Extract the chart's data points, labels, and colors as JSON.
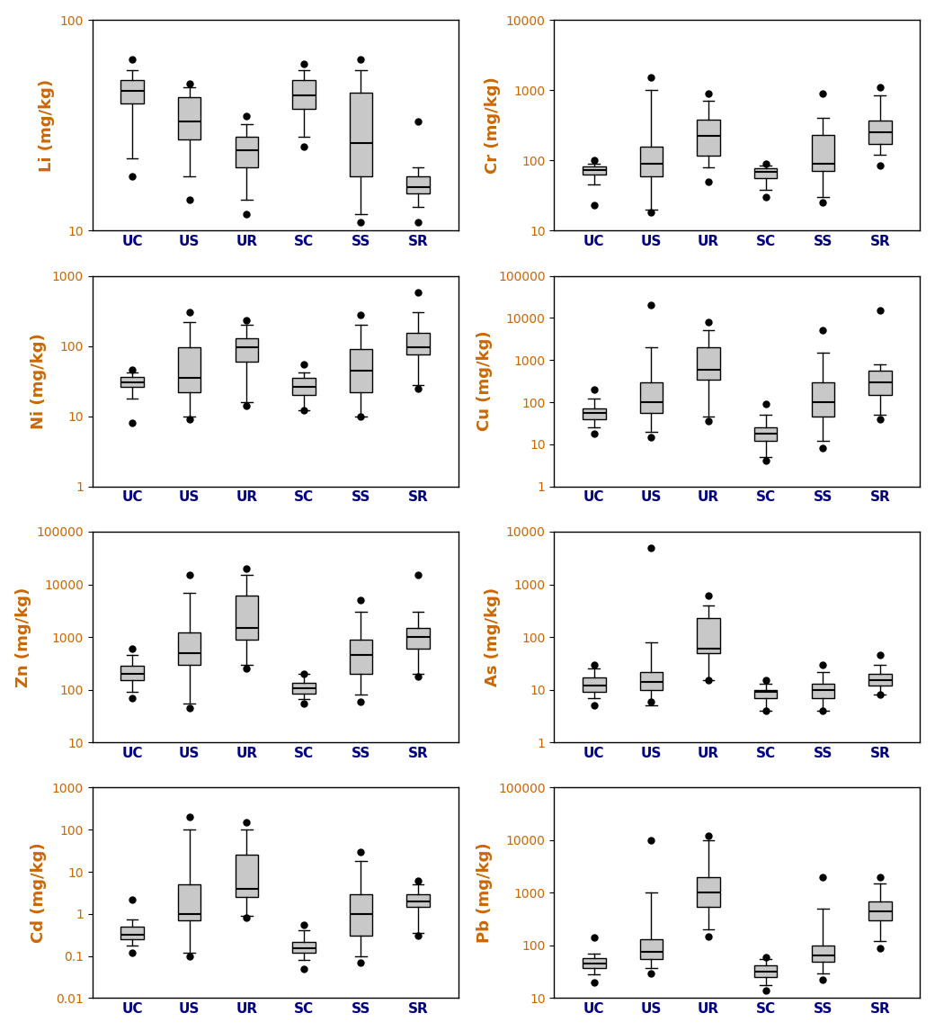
{
  "elements": [
    "UC",
    "US",
    "UR",
    "SC",
    "SS",
    "SR"
  ],
  "metals": [
    "Li",
    "Cr",
    "Ni",
    "Cu",
    "Zn",
    "As",
    "Cd",
    "Pb"
  ],
  "ylabel_color": "#CC6600",
  "xlabel_color": "#000080",
  "ytick_color": "#CC6600",
  "box_facecolor": "#C8C8C8",
  "box_edgecolor": "black",
  "whisker_color": "black",
  "flier_color": "black",
  "median_color": "black",
  "ylims": {
    "Li": [
      10,
      100
    ],
    "Cr": [
      10,
      10000
    ],
    "Ni": [
      1,
      1000
    ],
    "Cu": [
      1,
      100000
    ],
    "Zn": [
      10,
      100000
    ],
    "As": [
      1,
      10000
    ],
    "Cd": [
      0.01,
      1000
    ],
    "Pb": [
      10,
      100000
    ]
  },
  "yticks": {
    "Li": [
      10,
      100
    ],
    "Cr": [
      10,
      100,
      1000,
      10000
    ],
    "Ni": [
      1,
      10,
      100,
      1000
    ],
    "Cu": [
      1,
      10,
      100,
      1000,
      10000,
      100000
    ],
    "Zn": [
      10,
      100,
      1000,
      10000,
      100000
    ],
    "As": [
      1,
      10,
      100,
      1000,
      10000
    ],
    "Cd": [
      0.01,
      0.1,
      1,
      10,
      100,
      1000
    ],
    "Pb": [
      10,
      100,
      1000,
      10000,
      100000
    ]
  },
  "box_stats": {
    "Li": {
      "UC": {
        "whislo": 22,
        "q1": 40,
        "med": 46,
        "q3": 52,
        "whishi": 58,
        "fliers": [
          18,
          65
        ]
      },
      "US": {
        "whislo": 18,
        "q1": 27,
        "med": 33,
        "q3": 43,
        "whishi": 48,
        "fliers": [
          14,
          50
        ]
      },
      "UR": {
        "whislo": 14,
        "q1": 20,
        "med": 24,
        "q3": 28,
        "whishi": 32,
        "fliers": [
          12,
          35
        ]
      },
      "SC": {
        "whislo": 28,
        "q1": 38,
        "med": 44,
        "q3": 52,
        "whishi": 58,
        "fliers": [
          25,
          62
        ]
      },
      "SS": {
        "whislo": 12,
        "q1": 18,
        "med": 26,
        "q3": 45,
        "whishi": 58,
        "fliers": [
          11,
          65
        ]
      },
      "SR": {
        "whislo": 13,
        "q1": 15,
        "med": 16,
        "q3": 18,
        "whishi": 20,
        "fliers": [
          11,
          33
        ]
      }
    },
    "Cr": {
      "UC": {
        "whislo": 45,
        "q1": 62,
        "med": 72,
        "q3": 82,
        "whishi": 90,
        "fliers": [
          23,
          100
        ]
      },
      "US": {
        "whislo": 20,
        "q1": 60,
        "med": 90,
        "q3": 155,
        "whishi": 1000,
        "fliers": [
          18,
          1500
        ]
      },
      "UR": {
        "whislo": 80,
        "q1": 115,
        "med": 220,
        "q3": 380,
        "whishi": 700,
        "fliers": [
          50,
          900
        ]
      },
      "SC": {
        "whislo": 38,
        "q1": 55,
        "med": 68,
        "q3": 78,
        "whishi": 85,
        "fliers": [
          30,
          90
        ]
      },
      "SS": {
        "whislo": 30,
        "q1": 70,
        "med": 90,
        "q3": 230,
        "whishi": 400,
        "fliers": [
          25,
          900
        ]
      },
      "SR": {
        "whislo": 120,
        "q1": 170,
        "med": 250,
        "q3": 370,
        "whishi": 850,
        "fliers": [
          85,
          1100
        ]
      }
    },
    "Ni": {
      "UC": {
        "whislo": 18,
        "q1": 26,
        "med": 30,
        "q3": 36,
        "whishi": 42,
        "fliers": [
          8,
          46
        ]
      },
      "US": {
        "whislo": 10,
        "q1": 22,
        "med": 35,
        "q3": 95,
        "whishi": 220,
        "fliers": [
          9,
          300
        ]
      },
      "UR": {
        "whislo": 16,
        "q1": 60,
        "med": 95,
        "q3": 130,
        "whishi": 200,
        "fliers": [
          14,
          230
        ]
      },
      "SC": {
        "whislo": 12,
        "q1": 20,
        "med": 26,
        "q3": 35,
        "whishi": 42,
        "fliers": [
          12,
          55
        ]
      },
      "SS": {
        "whislo": 10,
        "q1": 22,
        "med": 45,
        "q3": 90,
        "whishi": 200,
        "fliers": [
          10,
          280
        ]
      },
      "SR": {
        "whislo": 28,
        "q1": 75,
        "med": 95,
        "q3": 155,
        "whishi": 300,
        "fliers": [
          25,
          580
        ]
      }
    },
    "Cu": {
      "UC": {
        "whislo": 25,
        "q1": 40,
        "med": 55,
        "q3": 70,
        "whishi": 120,
        "fliers": [
          18,
          200
        ]
      },
      "US": {
        "whislo": 20,
        "q1": 55,
        "med": 100,
        "q3": 300,
        "whishi": 2000,
        "fliers": [
          15,
          20000
        ]
      },
      "UR": {
        "whislo": 45,
        "q1": 350,
        "med": 600,
        "q3": 2000,
        "whishi": 5000,
        "fliers": [
          35,
          8000
        ]
      },
      "SC": {
        "whislo": 5,
        "q1": 12,
        "med": 18,
        "q3": 25,
        "whishi": 50,
        "fliers": [
          4,
          90
        ]
      },
      "SS": {
        "whislo": 12,
        "q1": 45,
        "med": 100,
        "q3": 300,
        "whishi": 1500,
        "fliers": [
          8,
          5000
        ]
      },
      "SR": {
        "whislo": 50,
        "q1": 150,
        "med": 300,
        "q3": 550,
        "whishi": 800,
        "fliers": [
          40,
          15000
        ]
      }
    },
    "Zn": {
      "UC": {
        "whislo": 90,
        "q1": 150,
        "med": 200,
        "q3": 280,
        "whishi": 450,
        "fliers": [
          70,
          600
        ]
      },
      "US": {
        "whislo": 55,
        "q1": 300,
        "med": 500,
        "q3": 1200,
        "whishi": 7000,
        "fliers": [
          45,
          15000
        ]
      },
      "UR": {
        "whislo": 300,
        "q1": 900,
        "med": 1500,
        "q3": 6000,
        "whishi": 15000,
        "fliers": [
          250,
          20000
        ]
      },
      "SC": {
        "whislo": 65,
        "q1": 85,
        "med": 105,
        "q3": 135,
        "whishi": 200,
        "fliers": [
          55,
          200
        ]
      },
      "SS": {
        "whislo": 80,
        "q1": 200,
        "med": 450,
        "q3": 900,
        "whishi": 3000,
        "fliers": [
          60,
          5000
        ]
      },
      "SR": {
        "whislo": 200,
        "q1": 600,
        "med": 1000,
        "q3": 1500,
        "whishi": 3000,
        "fliers": [
          180,
          15000
        ]
      }
    },
    "As": {
      "UC": {
        "whislo": 7,
        "q1": 9,
        "med": 12,
        "q3": 17,
        "whishi": 25,
        "fliers": [
          5,
          30
        ]
      },
      "US": {
        "whislo": 5,
        "q1": 10,
        "med": 14,
        "q3": 22,
        "whishi": 80,
        "fliers": [
          6,
          5000
        ]
      },
      "UR": {
        "whislo": 15,
        "q1": 50,
        "med": 60,
        "q3": 230,
        "whishi": 400,
        "fliers": [
          15,
          600
        ]
      },
      "SC": {
        "whislo": 4,
        "q1": 7,
        "med": 9,
        "q3": 10,
        "whishi": 13,
        "fliers": [
          4,
          15
        ]
      },
      "SS": {
        "whislo": 4,
        "q1": 7,
        "med": 10,
        "q3": 13,
        "whishi": 22,
        "fliers": [
          4,
          30
        ]
      },
      "SR": {
        "whislo": 8,
        "q1": 12,
        "med": 15,
        "q3": 20,
        "whishi": 30,
        "fliers": [
          8,
          45
        ]
      }
    },
    "Cd": {
      "UC": {
        "whislo": 0.18,
        "q1": 0.25,
        "med": 0.32,
        "q3": 0.5,
        "whishi": 0.75,
        "fliers": [
          0.12,
          2.2
        ]
      },
      "US": {
        "whislo": 0.12,
        "q1": 0.7,
        "med": 1.0,
        "q3": 5.0,
        "whishi": 100,
        "fliers": [
          0.1,
          200
        ]
      },
      "UR": {
        "whislo": 0.9,
        "q1": 2.5,
        "med": 4.0,
        "q3": 25,
        "whishi": 100,
        "fliers": [
          0.8,
          150
        ]
      },
      "SC": {
        "whislo": 0.08,
        "q1": 0.12,
        "med": 0.15,
        "q3": 0.22,
        "whishi": 0.4,
        "fliers": [
          0.05,
          0.55
        ]
      },
      "SS": {
        "whislo": 0.1,
        "q1": 0.3,
        "med": 1.0,
        "q3": 3.0,
        "whishi": 18,
        "fliers": [
          0.07,
          30
        ]
      },
      "SR": {
        "whislo": 0.35,
        "q1": 1.5,
        "med": 2.0,
        "q3": 3.0,
        "whishi": 5.0,
        "fliers": [
          0.3,
          6
        ]
      }
    },
    "Pb": {
      "UC": {
        "whislo": 28,
        "q1": 38,
        "med": 45,
        "q3": 58,
        "whishi": 70,
        "fliers": [
          20,
          140
        ]
      },
      "US": {
        "whislo": 38,
        "q1": 55,
        "med": 75,
        "q3": 130,
        "whishi": 1000,
        "fliers": [
          30,
          10000
        ]
      },
      "UR": {
        "whislo": 200,
        "q1": 550,
        "med": 1000,
        "q3": 2000,
        "whishi": 10000,
        "fliers": [
          150,
          12000
        ]
      },
      "SC": {
        "whislo": 18,
        "q1": 25,
        "med": 32,
        "q3": 42,
        "whishi": 55,
        "fliers": [
          14,
          60
        ]
      },
      "SS": {
        "whislo": 30,
        "q1": 50,
        "med": 65,
        "q3": 100,
        "whishi": 500,
        "fliers": [
          22,
          2000
        ]
      },
      "SR": {
        "whislo": 120,
        "q1": 300,
        "med": 450,
        "q3": 700,
        "whishi": 1500,
        "fliers": [
          90,
          2000
        ]
      }
    }
  }
}
